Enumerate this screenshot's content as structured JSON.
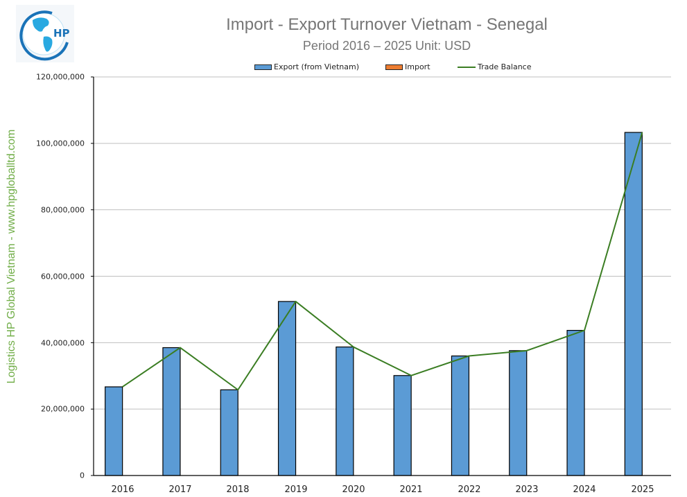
{
  "header": {
    "logo_label": "HP",
    "title": "Import - Export Turnover Vietnam - Senegal",
    "subtitle": "Period 2016 – 2025  Unit: USD"
  },
  "watermark": "Logistics HP Global Vietnam - www.hpgloballtd.com",
  "legend": [
    {
      "label": "Export (from Vietnam)",
      "color": "#5b9bd5",
      "type": "bar"
    },
    {
      "label": "Import",
      "color": "#ed7d31",
      "type": "bar"
    },
    {
      "label": "Trade Balance",
      "color": "#3a7d22",
      "type": "line"
    }
  ],
  "y_ticks": [
    "0",
    "20,000,000",
    "40,000,000",
    "60,000,000",
    "80,000,000",
    "100,000,000",
    "120,000,000"
  ],
  "x_ticks": [
    "2016",
    "2017",
    "2018",
    "2019",
    "2020",
    "2021",
    "2022",
    "2023",
    "2024",
    "2025"
  ],
  "chart_data": {
    "type": "bar",
    "title": "Import - Export Turnover Vietnam - Senegal",
    "subtitle": "Period 2016 – 2025  Unit: USD",
    "xlabel": "",
    "ylabel": "",
    "categories": [
      "2016",
      "2017",
      "2018",
      "2019",
      "2020",
      "2021",
      "2022",
      "2023",
      "2024",
      "2025"
    ],
    "series": [
      {
        "name": "Export (from Vietnam)",
        "type": "bar",
        "color": "#5b9bd5",
        "values": [
          26700000,
          38500000,
          25800000,
          52400000,
          38700000,
          30100000,
          36000000,
          37600000,
          43700000,
          103300000
        ]
      },
      {
        "name": "Import",
        "type": "bar",
        "color": "#ed7d31",
        "values": [
          0,
          0,
          0,
          0,
          0,
          0,
          0,
          0,
          0,
          0
        ]
      },
      {
        "name": "Trade Balance",
        "type": "line",
        "color": "#3a7d22",
        "values": [
          26700000,
          38500000,
          25800000,
          52400000,
          38700000,
          30100000,
          36000000,
          37600000,
          43700000,
          103300000
        ]
      }
    ],
    "ylim": [
      0,
      120000000
    ],
    "ytick_step": 20000000,
    "grid": true,
    "legend_position": "top"
  }
}
